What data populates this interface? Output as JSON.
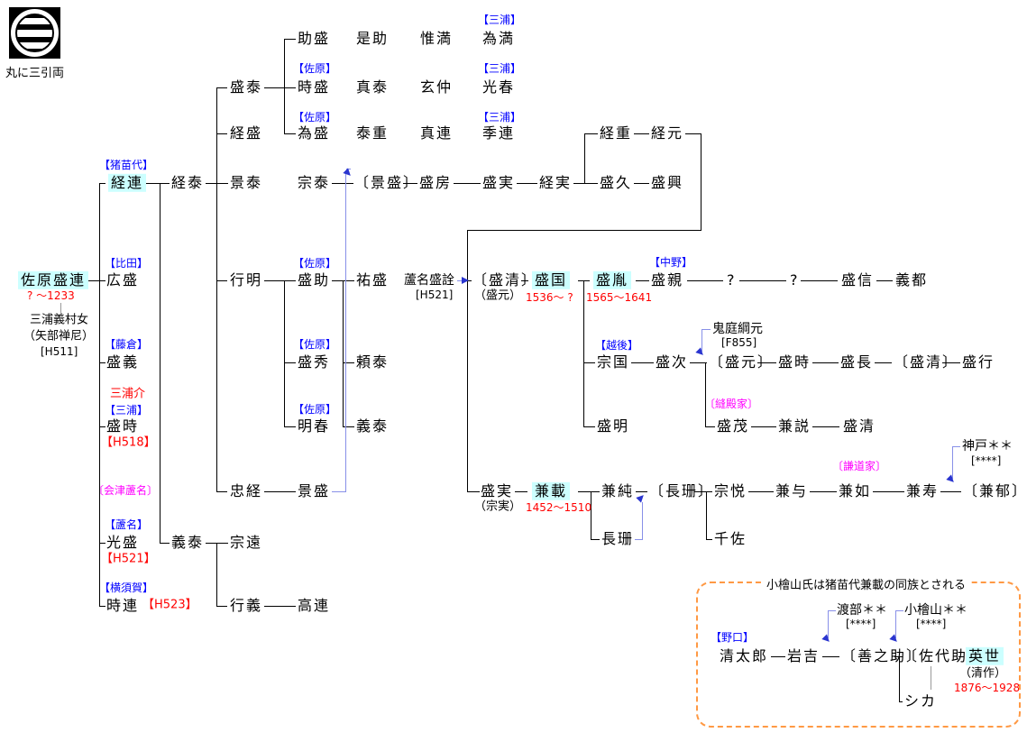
{
  "crest": {
    "label": "丸に三引両"
  },
  "colors": {
    "highlight_bg": "#ccffff",
    "clan_label": "#0000ff",
    "branch_label": "#ff00ff",
    "note_red": "#ff0000",
    "adoption_line": "#8890e8",
    "adoption_arrow": "#2a35cf",
    "box_border": "#ff9944"
  },
  "box": {
    "title": "小檜山氏は猪苗代兼載の同族とされる"
  },
  "texts": {
    "sawara_moritsura": {
      "t": "佐原盛連",
      "k": "name",
      "hl": true
    },
    "sawara_moritsura_dates": {
      "t": "? ～1233",
      "k": "date"
    },
    "miura_yoshimura_musume": {
      "t": "三浦義村女",
      "k": "sub"
    },
    "yabe_zenni": {
      "t": "（矢部禅尼）",
      "k": "sub"
    },
    "h511": {
      "t": "[H511]",
      "k": "code"
    },
    "label_inawashiro": {
      "t": "【猪苗代】",
      "k": "clan"
    },
    "tsunetsura": {
      "t": "経連",
      "k": "name",
      "hl": true
    },
    "label_hida": {
      "t": "【比田】",
      "k": "clan"
    },
    "hiromori": {
      "t": "広盛",
      "k": "name"
    },
    "label_fujikura": {
      "t": "【藤倉】",
      "k": "clan"
    },
    "moriyoshi": {
      "t": "盛義",
      "k": "name"
    },
    "miuranosuke": {
      "t": "三浦介",
      "k": "red13"
    },
    "label_miura_c1": {
      "t": "【三浦】",
      "k": "clan"
    },
    "moritoki": {
      "t": "盛時",
      "k": "name"
    },
    "h518": {
      "t": "【H518】",
      "k": "red13"
    },
    "label_aizu_ashina": {
      "t": "〔会津蘆名〕",
      "k": "branch"
    },
    "label_ashina": {
      "t": "【蘆名】",
      "k": "clan"
    },
    "mitsumori": {
      "t": "光盛",
      "k": "name"
    },
    "h521_mitsumori": {
      "t": "【H521】",
      "k": "red13"
    },
    "label_yokosuka": {
      "t": "【横須賀】",
      "k": "clan"
    },
    "tokitsura": {
      "t": "時連",
      "k": "name"
    },
    "h523": {
      "t": "【H523】",
      "k": "red13"
    },
    "tsuneyasu": {
      "t": "経泰",
      "k": "name"
    },
    "yoshiyasu": {
      "t": "義泰",
      "k": "name"
    },
    "moriyasu": {
      "t": "盛泰",
      "k": "name"
    },
    "tsunemori": {
      "t": "経盛",
      "k": "name"
    },
    "kageyasu": {
      "t": "景泰",
      "k": "name"
    },
    "yukiaki": {
      "t": "行明",
      "k": "name"
    },
    "tadatsune": {
      "t": "忠経",
      "k": "name"
    },
    "muneto": {
      "t": "宗遠",
      "k": "name"
    },
    "yukiyoshi": {
      "t": "行義",
      "k": "name"
    },
    "sukemori": {
      "t": "助盛",
      "k": "name"
    },
    "label_sahara1": {
      "t": "【佐原】",
      "k": "clan"
    },
    "tokimori": {
      "t": "時盛",
      "k": "name"
    },
    "label_sahara2": {
      "t": "【佐原】",
      "k": "clan"
    },
    "tamemori": {
      "t": "為盛",
      "k": "name"
    },
    "muneyasu": {
      "t": "宗泰",
      "k": "name"
    },
    "label_sahara3": {
      "t": "【佐原】",
      "k": "clan"
    },
    "morisuke": {
      "t": "盛助",
      "k": "name"
    },
    "label_sahara4": {
      "t": "【佐原】",
      "k": "clan"
    },
    "morihide": {
      "t": "盛秀",
      "k": "name"
    },
    "label_sahara5": {
      "t": "【佐原】",
      "k": "clan"
    },
    "akiharu": {
      "t": "明春",
      "k": "name"
    },
    "kagemori": {
      "t": "景盛",
      "k": "name"
    },
    "takatsura": {
      "t": "高連",
      "k": "name"
    },
    "koresuke": {
      "t": "是助",
      "k": "name"
    },
    "saneyasu": {
      "t": "真泰",
      "k": "name"
    },
    "yasushige": {
      "t": "泰重",
      "k": "name"
    },
    "kagemori_adopted": {
      "t": "〔景盛〕",
      "k": "name"
    },
    "sukemori2": {
      "t": "祐盛",
      "k": "name"
    },
    "yoriyasu": {
      "t": "頼泰",
      "k": "name"
    },
    "yoshiyasu2": {
      "t": "義泰",
      "k": "name"
    },
    "koremitsu": {
      "t": "惟満",
      "k": "name"
    },
    "genchu": {
      "t": "玄仲",
      "k": "name"
    },
    "sanetsura": {
      "t": "真連",
      "k": "name"
    },
    "morifusa": {
      "t": "盛房",
      "k": "name"
    },
    "label_miura_t1": {
      "t": "【三浦】",
      "k": "clan"
    },
    "tamemitsu": {
      "t": "為満",
      "k": "name"
    },
    "label_miura_t2": {
      "t": "【三浦】",
      "k": "clan"
    },
    "mitsuharu": {
      "t": "光春",
      "k": "name"
    },
    "label_miura_t3": {
      "t": "【三浦】",
      "k": "clan"
    },
    "suetsura": {
      "t": "季連",
      "k": "name"
    },
    "morizane": {
      "t": "盛実",
      "k": "name"
    },
    "tsunezane": {
      "t": "経実",
      "k": "name"
    },
    "tsuneshige": {
      "t": "経重",
      "k": "name"
    },
    "tsunemoto": {
      "t": "経元",
      "k": "name"
    },
    "morihisa": {
      "t": "盛久",
      "k": "name"
    },
    "morioki": {
      "t": "盛興",
      "k": "name"
    },
    "ashina_moriakira": {
      "t": "蘆名盛詮",
      "k": "n14"
    },
    "h521_ashina": {
      "t": "[H521]",
      "k": "code"
    },
    "morikiyo_adopted": {
      "t": "〔盛清〕",
      "k": "name"
    },
    "morimoto_alias": {
      "t": "（盛元）",
      "k": "sub"
    },
    "morikuni": {
      "t": "盛国",
      "k": "name",
      "hl": true
    },
    "morikuni_dates": {
      "t": "1536～ ?",
      "k": "date"
    },
    "moritane": {
      "t": "盛胤",
      "k": "name",
      "hl": true
    },
    "moritane_dates": {
      "t": "1565～1641",
      "k": "date"
    },
    "label_nakano": {
      "t": "【中野】",
      "k": "clan"
    },
    "morichika": {
      "t": "盛親",
      "k": "name"
    },
    "unknown1": {
      "t": "?",
      "k": "name"
    },
    "unknown2": {
      "t": "?",
      "k": "name"
    },
    "morinobu": {
      "t": "盛信",
      "k": "name"
    },
    "yoshikuni": {
      "t": "義都",
      "k": "name"
    },
    "oniwa_tsunamoto": {
      "t": "鬼庭綱元",
      "k": "n14"
    },
    "f855": {
      "t": "[F855]",
      "k": "code"
    },
    "label_echigo": {
      "t": "【越後】",
      "k": "clan"
    },
    "munekuni": {
      "t": "宗国",
      "k": "name"
    },
    "moritsugu": {
      "t": "盛次",
      "k": "name"
    },
    "morimoto_adopted": {
      "t": "〔盛元〕",
      "k": "name"
    },
    "moritoki2": {
      "t": "盛時",
      "k": "name"
    },
    "morinaga": {
      "t": "盛長",
      "k": "name"
    },
    "morikiyo2": {
      "t": "〔盛清〕",
      "k": "name"
    },
    "moriyuki": {
      "t": "盛行",
      "k": "name"
    },
    "moriaki": {
      "t": "盛明",
      "k": "name"
    },
    "label_nuidonoke": {
      "t": "〔縫殿家〕",
      "k": "branch"
    },
    "morishige": {
      "t": "盛茂",
      "k": "name"
    },
    "kanetoki": {
      "t": "兼説",
      "k": "name"
    },
    "morikiyo3": {
      "t": "盛清",
      "k": "name"
    },
    "morizane2": {
      "t": "盛実",
      "k": "name"
    },
    "munezane_alias": {
      "t": "（宗実）",
      "k": "sub"
    },
    "kanesai": {
      "t": "兼載",
      "k": "name",
      "hl": true
    },
    "kanesai_dates": {
      "t": "1452～1510",
      "k": "date"
    },
    "kanezumi": {
      "t": "兼純",
      "k": "name"
    },
    "chosan_adopted": {
      "t": "〔長珊〕",
      "k": "name"
    },
    "chosan": {
      "t": "長珊",
      "k": "name"
    },
    "soetsu": {
      "t": "宗悦",
      "k": "name"
    },
    "chisa": {
      "t": "千佐",
      "k": "name"
    },
    "kaneyo": {
      "t": "兼与",
      "k": "name"
    },
    "label_kendoke": {
      "t": "〔謙道家〕",
      "k": "branch"
    },
    "kanejo": {
      "t": "兼如",
      "k": "name"
    },
    "kaneju": {
      "t": "兼寿",
      "k": "name"
    },
    "kaneiku_adopted": {
      "t": "〔兼郁〕",
      "k": "name"
    },
    "kambe": {
      "t": "神戸＊＊",
      "k": "n14"
    },
    "kambe_code": {
      "t": "[****]",
      "k": "code"
    },
    "label_noguchi": {
      "t": "【野口】",
      "k": "clan"
    },
    "seitaro": {
      "t": "清太郎",
      "k": "name"
    },
    "iwakichi": {
      "t": "岩吉",
      "k": "name"
    },
    "zennosuke_adopted": {
      "t": "〔善之助〕",
      "k": "name"
    },
    "sayosuke_adopted": {
      "t": "〔佐代助〕",
      "k": "name"
    },
    "hideyo": {
      "t": "英世",
      "k": "name",
      "hl": true
    },
    "seisaku_alias": {
      "t": "（清作）",
      "k": "sub"
    },
    "hideyo_dates": {
      "t": "1876～1928",
      "k": "date"
    },
    "shika": {
      "t": "シカ",
      "k": "name"
    },
    "watanabe": {
      "t": "渡部＊＊",
      "k": "n14"
    },
    "watanabe_code": {
      "t": "[****]",
      "k": "code"
    },
    "kobiyama": {
      "t": "小檜山＊＊",
      "k": "n14"
    },
    "kobiyama_code": {
      "t": "[****]",
      "k": "code"
    }
  }
}
